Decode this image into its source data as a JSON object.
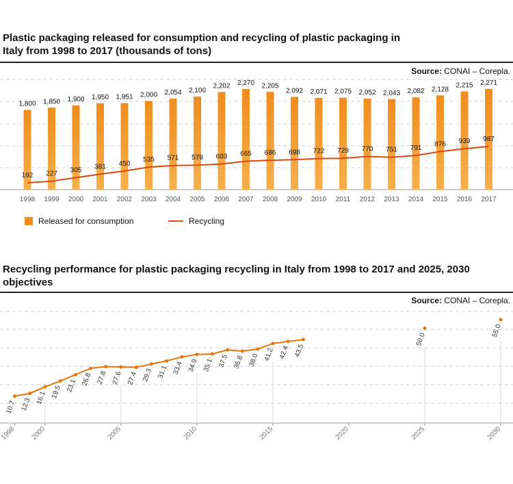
{
  "colors": {
    "bar": "#f08c1e",
    "bar_light": "#f7b04c",
    "line": "#d9480f",
    "perf": "#e8750a",
    "grid": "#cfcfcf"
  },
  "chart1": {
    "title": "Plastic packaging released for consumption and recycling of plastic packaging in Italy from 1998 to 2017 (thousands of tons)",
    "source_label": "Source:",
    "source_text": "CONAI – Corepla.",
    "legend_bar": "Released for consumption",
    "legend_line": "Recycling"
  },
  "chart2": {
    "title": "Recycling performance for plastic packaging recycling in Italy from 1998 to 2017 and 2025, 2030 objectives",
    "source_label": "Source:",
    "source_text": "CONAI – Corepla."
  },
  "chart_data": [
    {
      "type": "bar",
      "categories": [
        "1998",
        "1999",
        "2000",
        "2001",
        "2002",
        "2003",
        "2004",
        "2005",
        "2006",
        "2007",
        "2008",
        "2009",
        "2010",
        "2011",
        "2012",
        "2013",
        "2014",
        "2015",
        "2016",
        "2017"
      ],
      "series": [
        {
          "name": "Released for consumption",
          "type": "bar",
          "values": [
            1800,
            1850,
            1900,
            1950,
            1951,
            2000,
            2054,
            2100,
            2202,
            2270,
            2205,
            2092,
            2071,
            2075,
            2052,
            2043,
            2082,
            2128,
            2215,
            2271
          ],
          "labels": [
            "1,800",
            "1,850",
            "1,900",
            "1,950",
            "1,951",
            "2,000",
            "2,054",
            "2,100",
            "2,202",
            "2,270",
            "2,205",
            "2,092",
            "2,071",
            "2,075",
            "2,052",
            "2,043",
            "2,082",
            "2,128",
            "2,215",
            "2,271"
          ]
        },
        {
          "name": "Recycling",
          "type": "line",
          "values": [
            192,
            227,
            305,
            381,
            450,
            535,
            571,
            579,
            603,
            665,
            686,
            698,
            722,
            729,
            770,
            751,
            791,
            876,
            939,
            987
          ],
          "labels": [
            "192",
            "227",
            "305",
            "381",
            "450",
            "535",
            "571",
            "579",
            "603",
            "665",
            "686",
            "698",
            "722",
            "729",
            "770",
            "751",
            "791",
            "876",
            "939",
            "987"
          ]
        }
      ],
      "grid": true,
      "legend": "bottom-left"
    },
    {
      "type": "line",
      "x": [
        1998,
        1999,
        2000,
        2001,
        2002,
        2003,
        2004,
        2005,
        2006,
        2007,
        2008,
        2009,
        2010,
        2011,
        2012,
        2013,
        2014,
        2015,
        2016,
        2017
      ],
      "values": [
        10.7,
        12.3,
        16.1,
        19.5,
        23.1,
        26.8,
        27.8,
        27.6,
        27.4,
        29.3,
        31.1,
        33.4,
        34.9,
        35.1,
        37.5,
        36.8,
        38.0,
        41.2,
        42.4,
        43.5
      ],
      "labels": [
        "10.7",
        "12.3",
        "16.1",
        "19.5",
        "23.1",
        "26.8",
        "27.8",
        "27.6",
        "27.4",
        "29.3",
        "31.1",
        "33.4",
        "34.9",
        "35.1",
        "37.5",
        "36.8",
        "38.0",
        "41.2",
        "42.4",
        "43.5"
      ],
      "objectives": [
        {
          "x": 2025,
          "value": 50.0,
          "label": "50.0"
        },
        {
          "x": 2030,
          "value": 55.0,
          "label": "55.0"
        }
      ],
      "xticks": [
        "1998",
        "2000",
        "2005",
        "2010",
        "2015",
        "2020",
        "2025",
        "2030"
      ],
      "xlim": [
        1998,
        2030
      ],
      "grid": true
    }
  ]
}
